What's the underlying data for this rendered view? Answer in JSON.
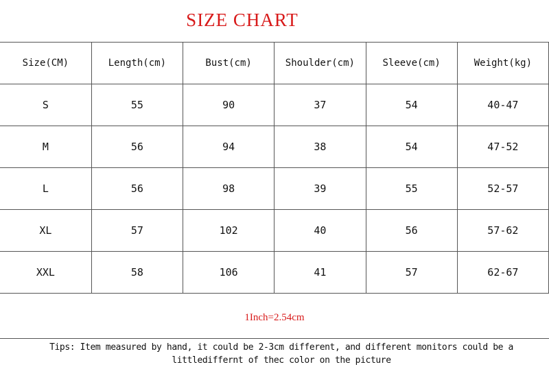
{
  "title": "SIZE CHART",
  "table": {
    "headers": [
      "Size(CM)",
      "Length(cm)",
      "Bust(cm)",
      "Shoulder(cm)",
      "Sleeve(cm)",
      "Weight(kg)"
    ],
    "rows": [
      [
        "S",
        "55",
        "90",
        "37",
        "54",
        "40-47"
      ],
      [
        "M",
        "56",
        "94",
        "38",
        "54",
        "47-52"
      ],
      [
        "L",
        "56",
        "98",
        "39",
        "55",
        "52-57"
      ],
      [
        "XL",
        "57",
        "102",
        "40",
        "56",
        "57-62"
      ],
      [
        "XXL",
        "58",
        "106",
        "41",
        "57",
        "62-67"
      ]
    ]
  },
  "note": "1Inch=2.54cm",
  "tips": "Tips: Item measured by hand, it could be 2-3cm different,  and different monitors could be a littlediffernt of thec color on the picture",
  "colors": {
    "accent": "#d81a1a"
  }
}
